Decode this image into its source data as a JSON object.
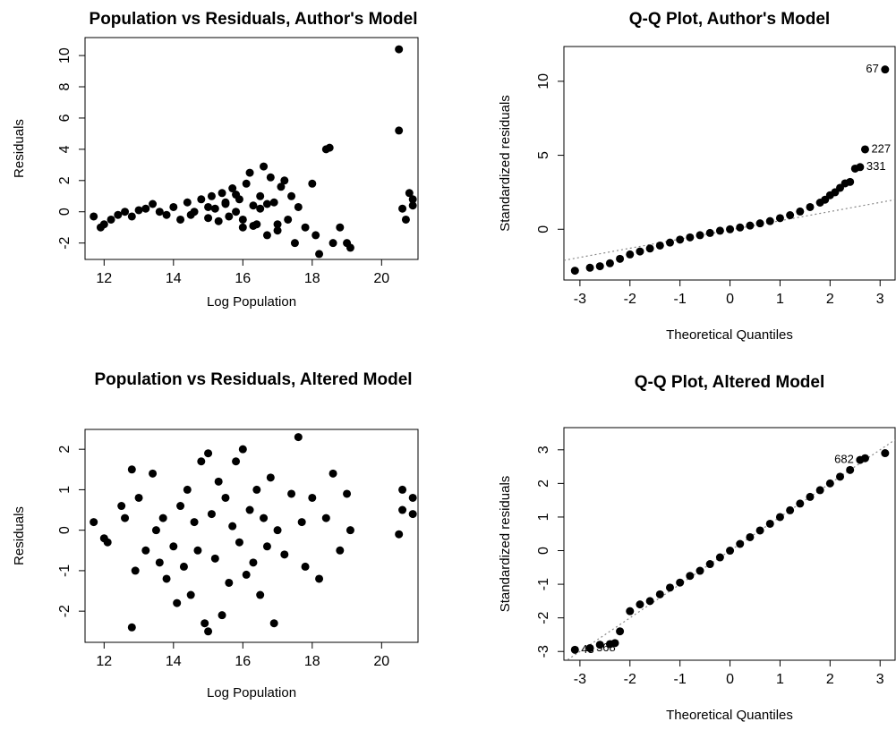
{
  "chart_data": [
    {
      "type": "scatter",
      "title": "Population vs Residuals, Author's Model",
      "x_label": "Log Population",
      "y_label": "Residuals",
      "xlim": [
        11.45,
        21.05
      ],
      "ylim": [
        -3.05,
        11.15
      ],
      "xticks": [
        12,
        14,
        16,
        18,
        20
      ],
      "yticks": [
        -2,
        0,
        2,
        4,
        6,
        8,
        10
      ],
      "color": "#000000",
      "x": [
        11.7,
        11.9,
        12.0,
        12.2,
        12.4,
        12.6,
        12.8,
        13.0,
        13.2,
        13.4,
        13.6,
        13.8,
        14.0,
        14.2,
        14.4,
        14.6,
        14.8,
        15.0,
        15.1,
        15.2,
        15.3,
        15.4,
        15.5,
        15.6,
        15.7,
        15.8,
        15.9,
        16.0,
        16.1,
        16.2,
        16.3,
        16.4,
        16.5,
        16.6,
        16.7,
        16.8,
        16.9,
        17.0,
        17.1,
        17.2,
        17.3,
        17.4,
        17.5,
        17.6,
        17.8,
        18.0,
        18.1,
        18.2,
        18.4,
        18.5,
        18.6,
        18.8,
        19.0,
        19.1,
        20.5,
        20.5,
        20.6,
        20.7,
        20.8,
        20.9,
        20.9,
        14.5,
        15.0,
        15.5,
        16.0,
        16.5,
        17.0,
        15.8,
        16.3,
        16.7
      ],
      "values": [
        -0.3,
        -1.0,
        -0.8,
        -0.5,
        -0.2,
        0.0,
        -0.3,
        0.1,
        0.2,
        0.5,
        0.0,
        -0.2,
        0.3,
        -0.5,
        0.6,
        0.0,
        0.8,
        -0.4,
        1.0,
        0.2,
        -0.6,
        1.2,
        0.5,
        -0.3,
        1.5,
        0.0,
        0.8,
        -1.0,
        1.8,
        2.5,
        0.4,
        -0.8,
        1.0,
        2.9,
        -1.5,
        2.2,
        0.6,
        -1.2,
        1.6,
        2.0,
        -0.5,
        1.0,
        -2.0,
        0.3,
        -1.0,
        1.8,
        -1.5,
        -2.7,
        4.0,
        4.1,
        -2.0,
        -1.0,
        -2.0,
        -2.3,
        10.4,
        5.2,
        0.2,
        -0.5,
        1.2,
        0.8,
        0.4,
        -0.2,
        0.3,
        0.6,
        -0.5,
        0.2,
        -0.8,
        1.1,
        -0.9,
        0.5
      ]
    },
    {
      "type": "qq",
      "title": "Q-Q Plot, Author's Model",
      "x_label": "Theoretical Quantiles",
      "y_label": "Standardized residuals",
      "xlim": [
        -3.32,
        3.3
      ],
      "ylim": [
        -3.43,
        12.35
      ],
      "xticks": [
        -3,
        -2,
        -1,
        0,
        1,
        2,
        3
      ],
      "yticks": [
        0,
        5,
        10
      ],
      "color": "#000000",
      "line_color": "#888888",
      "x": [
        -3.1,
        -2.8,
        -2.6,
        -2.4,
        -2.2,
        -2.0,
        -1.8,
        -1.6,
        -1.4,
        -1.2,
        -1.0,
        -0.8,
        -0.6,
        -0.4,
        -0.2,
        0.0,
        0.2,
        0.4,
        0.6,
        0.8,
        1.0,
        1.2,
        1.4,
        1.6,
        1.8,
        1.9,
        2.0,
        2.1,
        2.2,
        2.3,
        2.4,
        2.5,
        2.6,
        2.7,
        3.1
      ],
      "values": [
        -2.8,
        -2.6,
        -2.5,
        -2.3,
        -2.0,
        -1.7,
        -1.5,
        -1.3,
        -1.1,
        -0.9,
        -0.7,
        -0.55,
        -0.4,
        -0.25,
        -0.1,
        0.0,
        0.12,
        0.25,
        0.4,
        0.55,
        0.75,
        0.95,
        1.2,
        1.5,
        1.8,
        2.0,
        2.3,
        2.5,
        2.8,
        3.1,
        3.2,
        4.1,
        4.2,
        5.4,
        10.8
      ],
      "reference_line": {
        "x": [
          -3.32,
          3.3
        ],
        "y": [
          -2.1,
          2.0
        ]
      },
      "annotations": [
        {
          "text": "67",
          "x": 3.1,
          "y": 10.8,
          "side": "left"
        },
        {
          "text": "227",
          "x": 2.7,
          "y": 5.4,
          "side": "right"
        },
        {
          "text": "331",
          "x": 2.6,
          "y": 4.2,
          "side": "right"
        }
      ]
    },
    {
      "type": "scatter",
      "title": "Population vs Residuals, Altered Model",
      "x_label": "Log Population",
      "y_label": "Residuals",
      "xlim": [
        11.45,
        21.05
      ],
      "ylim": [
        -2.77,
        2.49
      ],
      "xticks": [
        12,
        14,
        16,
        18,
        20
      ],
      "yticks": [
        -2,
        -1,
        0,
        1,
        2
      ],
      "color": "#000000",
      "x": [
        11.7,
        12.0,
        12.1,
        12.5,
        12.6,
        12.8,
        12.8,
        12.9,
        13.0,
        13.2,
        13.4,
        13.5,
        13.6,
        13.7,
        13.8,
        14.0,
        14.1,
        14.2,
        14.3,
        14.4,
        14.5,
        14.6,
        14.7,
        14.8,
        14.9,
        15.0,
        15.0,
        15.1,
        15.2,
        15.3,
        15.4,
        15.5,
        15.6,
        15.7,
        15.8,
        15.9,
        16.0,
        16.1,
        16.2,
        16.3,
        16.4,
        16.5,
        16.6,
        16.7,
        16.8,
        16.9,
        17.0,
        17.2,
        17.4,
        17.6,
        17.7,
        17.8,
        18.0,
        18.2,
        18.4,
        18.6,
        18.8,
        19.0,
        19.1,
        20.5,
        20.6,
        20.6,
        20.9,
        20.9
      ],
      "values": [
        0.2,
        -0.2,
        -0.3,
        0.6,
        0.3,
        -2.4,
        1.5,
        -1.0,
        0.8,
        -0.5,
        1.4,
        0.0,
        -0.8,
        0.3,
        -1.2,
        -0.4,
        -1.8,
        0.6,
        -0.9,
        1.0,
        -1.6,
        0.2,
        -0.5,
        1.7,
        -2.3,
        1.9,
        -2.5,
        0.4,
        -0.7,
        1.2,
        -2.1,
        0.8,
        -1.3,
        0.1,
        1.7,
        -0.3,
        2.0,
        -1.1,
        0.5,
        -0.8,
        1.0,
        -1.6,
        0.3,
        -0.4,
        1.3,
        -2.3,
        0.0,
        -0.6,
        0.9,
        2.3,
        0.2,
        -0.9,
        0.8,
        -1.2,
        0.3,
        1.4,
        -0.5,
        0.9,
        0.0,
        -0.1,
        0.5,
        1.0,
        0.8,
        0.4
      ]
    },
    {
      "type": "qq",
      "title": "Q-Q Plot, Altered Model",
      "x_label": "Theoretical Quantiles",
      "y_label": "Standardized residuals",
      "xlim": [
        -3.32,
        3.3
      ],
      "ylim": [
        -3.26,
        3.66
      ],
      "xticks": [
        -3,
        -2,
        -1,
        0,
        1,
        2,
        3
      ],
      "yticks": [
        -3,
        -2,
        -1,
        0,
        1,
        2,
        3
      ],
      "color": "#000000",
      "line_color": "#888888",
      "x": [
        -3.1,
        -2.8,
        -2.6,
        -2.4,
        -2.3,
        -2.2,
        -2.0,
        -1.8,
        -1.6,
        -1.4,
        -1.2,
        -1.0,
        -0.8,
        -0.6,
        -0.4,
        -0.2,
        0.0,
        0.2,
        0.4,
        0.6,
        0.8,
        1.0,
        1.2,
        1.4,
        1.6,
        1.8,
        2.0,
        2.2,
        2.4,
        2.6,
        2.7,
        3.1
      ],
      "values": [
        -2.95,
        -2.9,
        -2.8,
        -2.78,
        -2.75,
        -2.4,
        -1.8,
        -1.6,
        -1.5,
        -1.3,
        -1.1,
        -0.95,
        -0.75,
        -0.6,
        -0.4,
        -0.2,
        0.0,
        0.2,
        0.4,
        0.6,
        0.8,
        1.0,
        1.2,
        1.4,
        1.6,
        1.8,
        2.0,
        2.2,
        2.4,
        2.7,
        2.75,
        2.9
      ],
      "reference_line": {
        "x": [
          -3.32,
          3.3
        ],
        "y": [
          -3.32,
          3.3
        ]
      },
      "annotations": [
        {
          "text": "682",
          "x": 2.6,
          "y": 2.7,
          "side": "left"
        },
        {
          "text": "43",
          "x": -3.1,
          "y": -2.95,
          "side": "right"
        },
        {
          "text": "368",
          "x": -2.8,
          "y": -2.9,
          "side": "right"
        }
      ]
    }
  ]
}
